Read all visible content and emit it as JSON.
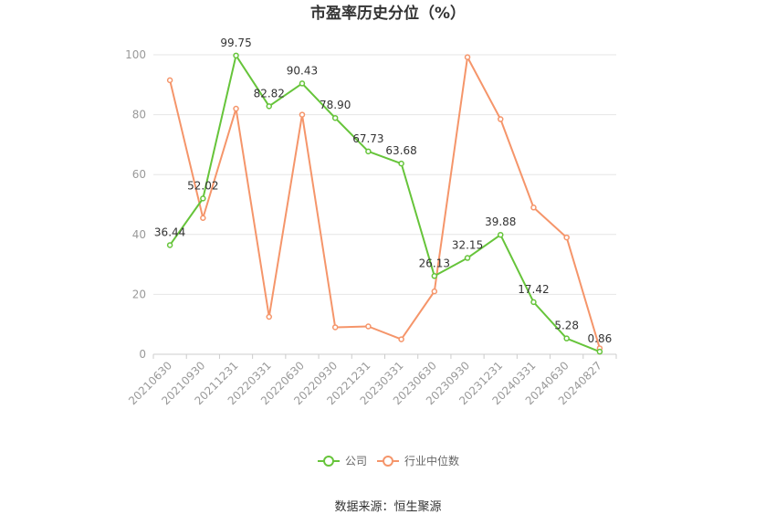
{
  "chart_data": {
    "type": "line",
    "title": "市盈率历史分位（%）",
    "categories": [
      "20210630",
      "20210930",
      "20211231",
      "20220331",
      "20220630",
      "20220930",
      "20221231",
      "20230331",
      "20230630",
      "20230930",
      "20231231",
      "20240331",
      "20240630",
      "20240827"
    ],
    "ylim": [
      0,
      100
    ],
    "yticks": [
      0,
      20,
      40,
      60,
      80,
      100
    ],
    "grid": true,
    "legend_position": "bottom",
    "series": [
      {
        "name": "公司",
        "color": "#66c43a",
        "values": [
          36.44,
          52.02,
          99.75,
          82.82,
          90.43,
          78.9,
          67.73,
          63.68,
          26.13,
          32.15,
          39.88,
          17.42,
          5.28,
          0.86
        ],
        "labels": [
          "36.44",
          "52.02",
          "99.75",
          "82.82",
          "90.43",
          "78.90",
          "67.73",
          "63.68",
          "26.13",
          "32.15",
          "39.88",
          "17.42",
          "5.28",
          "0.86"
        ]
      },
      {
        "name": "行业中位数",
        "color": "#f5956a",
        "values": [
          91.5,
          45.5,
          82.0,
          12.5,
          80.0,
          9.0,
          9.3,
          5.0,
          21.0,
          99.2,
          78.5,
          49.0,
          39.0,
          2.0
        ]
      }
    ]
  },
  "source": "数据来源：恒生聚源"
}
